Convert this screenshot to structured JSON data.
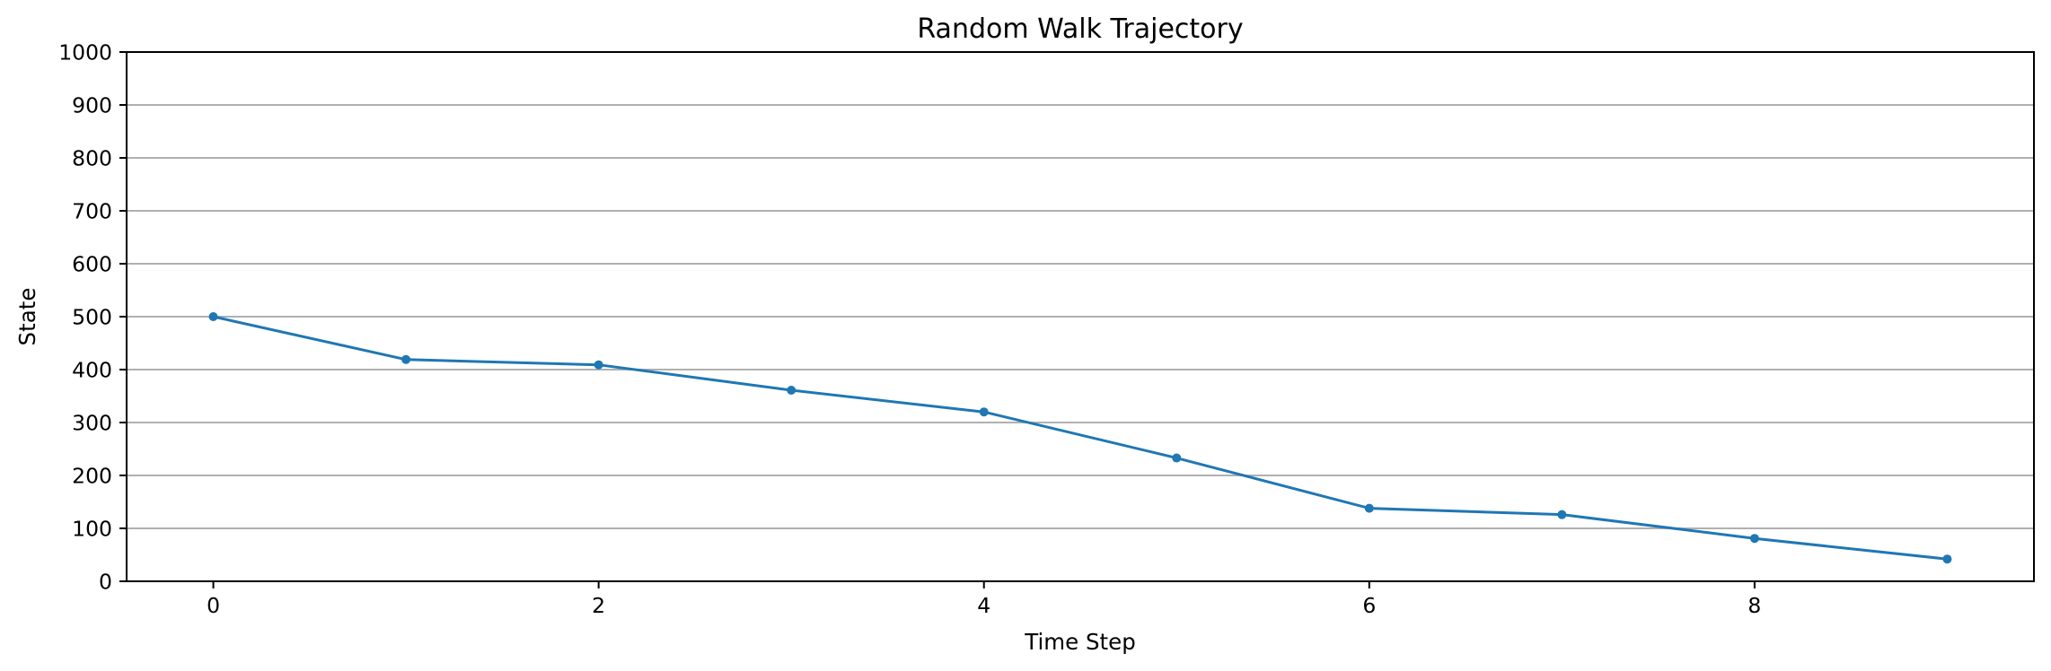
{
  "chart_data": {
    "type": "line",
    "title": "Random Walk Trajectory",
    "xlabel": "Time Step",
    "ylabel": "State",
    "xlim": [
      -0.45,
      9.45
    ],
    "ylim": [
      0,
      1000
    ],
    "x_ticks": [
      0,
      2,
      4,
      6,
      8
    ],
    "y_ticks": [
      0,
      100,
      200,
      300,
      400,
      500,
      600,
      700,
      800,
      900,
      1000
    ],
    "grid": "horizontal",
    "series": [
      {
        "x": [
          0,
          1,
          2,
          3,
          4,
          5,
          6,
          7,
          8,
          9
        ],
        "values": [
          500,
          419,
          409,
          361,
          320,
          233,
          138,
          126,
          81,
          42
        ],
        "color": "#1f77b4",
        "marker": "circle"
      }
    ]
  }
}
